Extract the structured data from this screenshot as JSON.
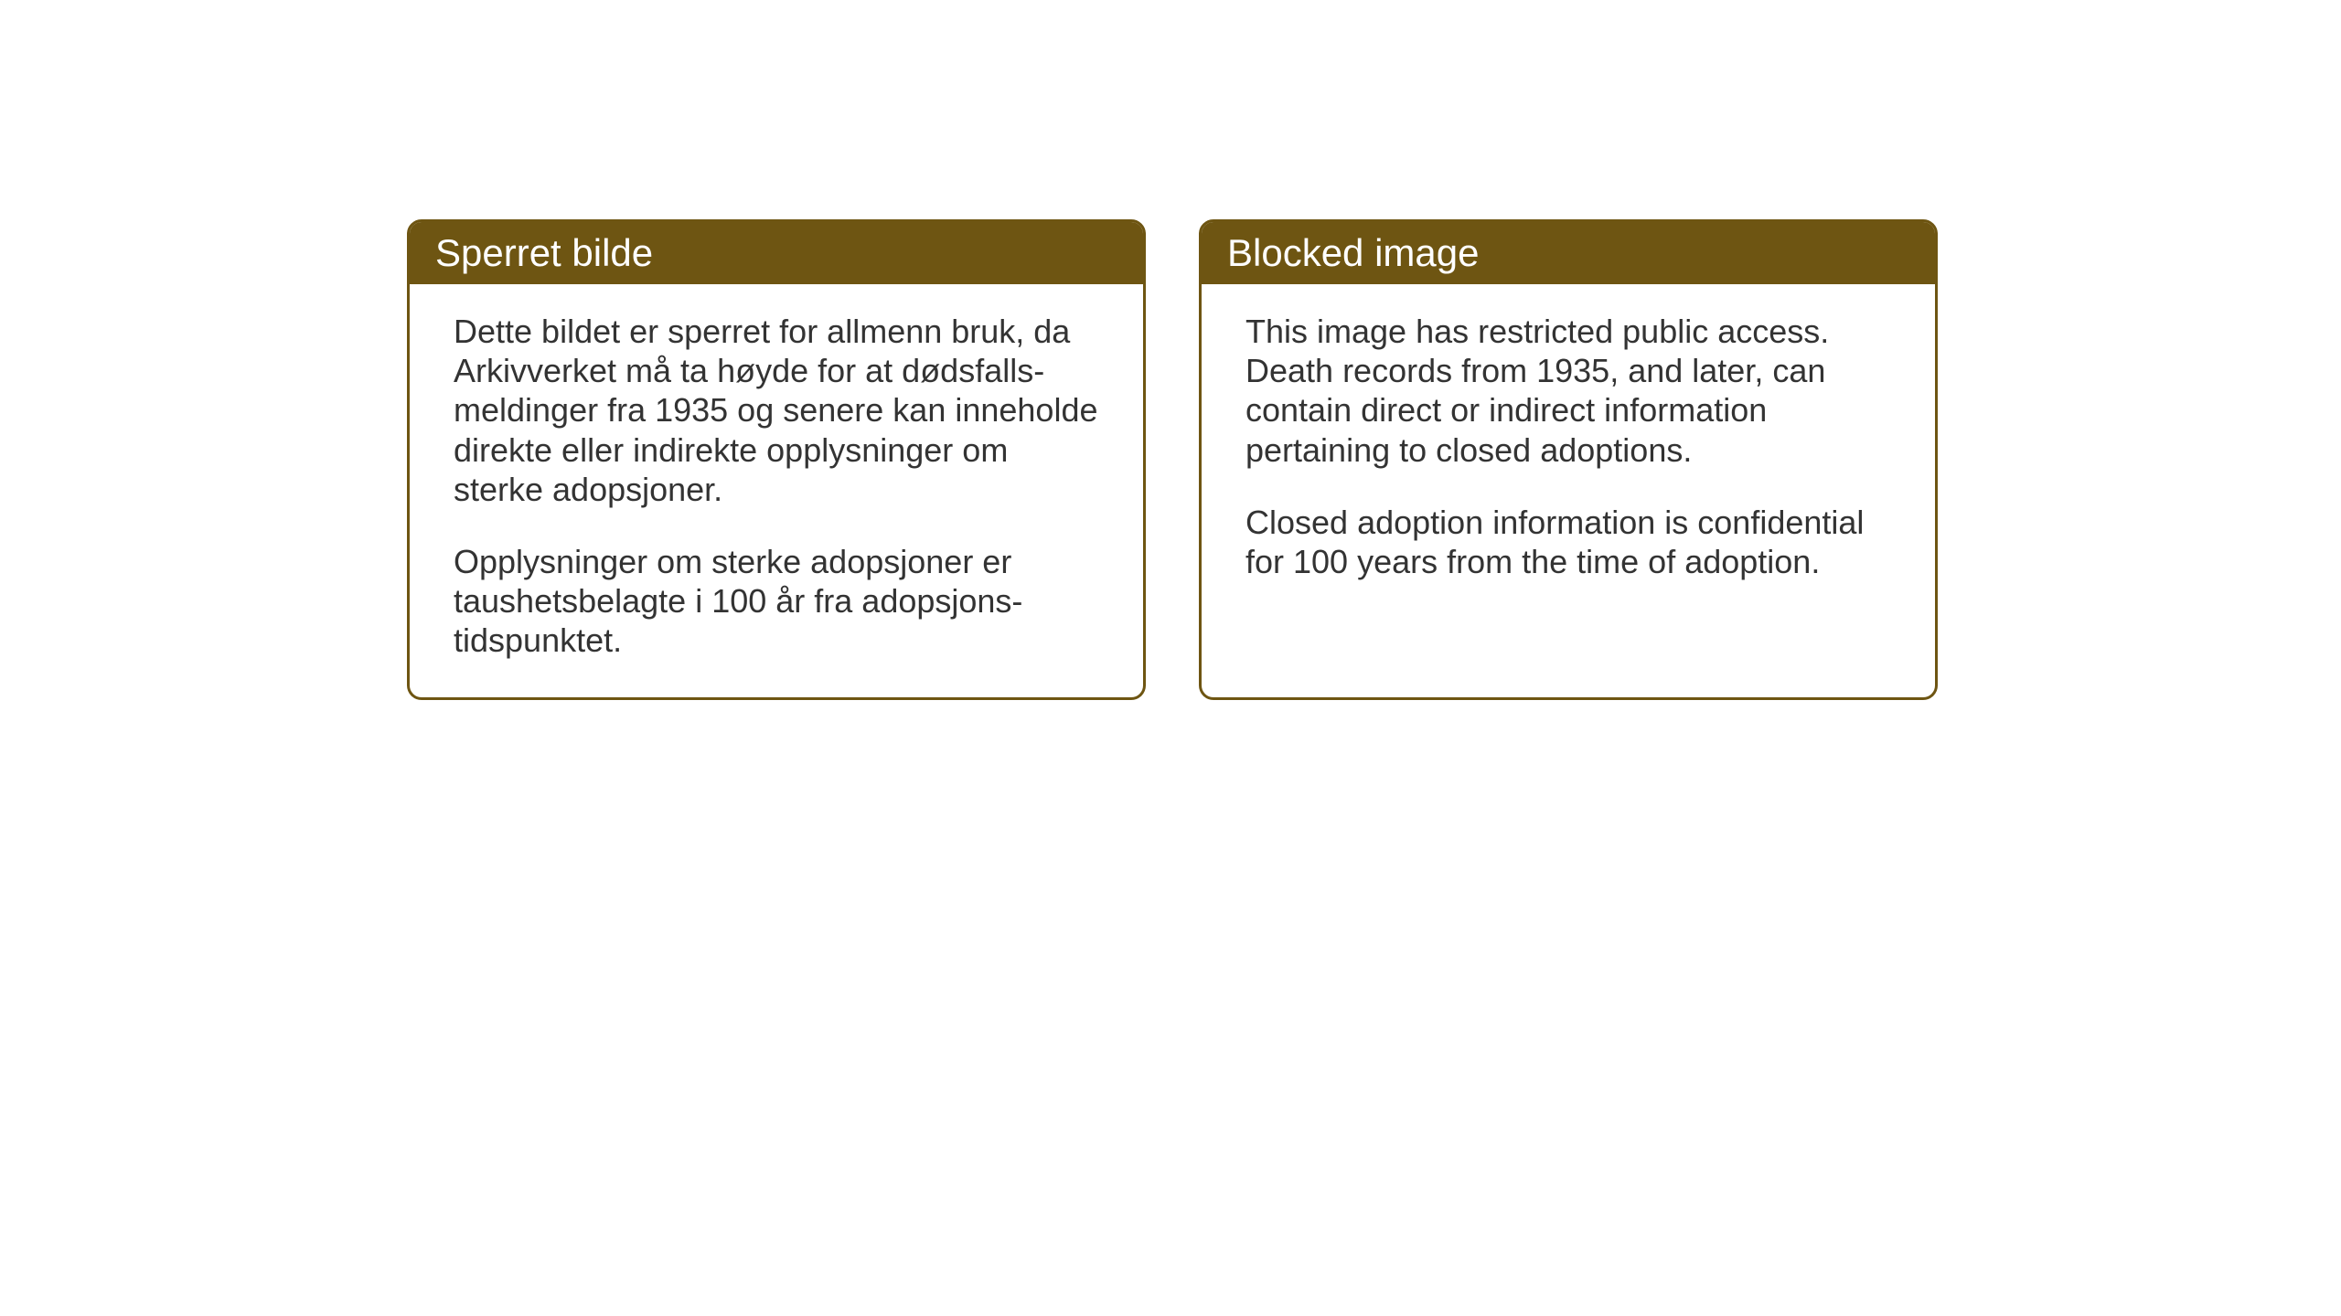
{
  "styling": {
    "card_border_color": "#6e5512",
    "card_header_bg": "#6e5512",
    "card_header_text_color": "#ffffff",
    "card_body_bg": "#ffffff",
    "card_body_text_color": "#333333",
    "card_border_radius": 16,
    "card_border_width": 3,
    "header_font_size": 42,
    "body_font_size": 36,
    "page_bg": "#ffffff"
  },
  "cards": {
    "norwegian": {
      "title": "Sperret bilde",
      "paragraph1": "Dette bildet er sperret for allmenn bruk, da Arkivverket må ta høyde for at dødsfalls-meldinger fra 1935 og senere kan inneholde direkte eller indirekte opplysninger om sterke adopsjoner.",
      "paragraph2": "Opplysninger om sterke adopsjoner er taushetsbelagte i 100 år fra adopsjons-tidspunktet."
    },
    "english": {
      "title": "Blocked image",
      "paragraph1": "This image has restricted public access. Death records from 1935, and later, can contain direct or indirect information pertaining to closed adoptions.",
      "paragraph2": "Closed adoption information is confidential for 100 years from the time of adoption."
    }
  }
}
